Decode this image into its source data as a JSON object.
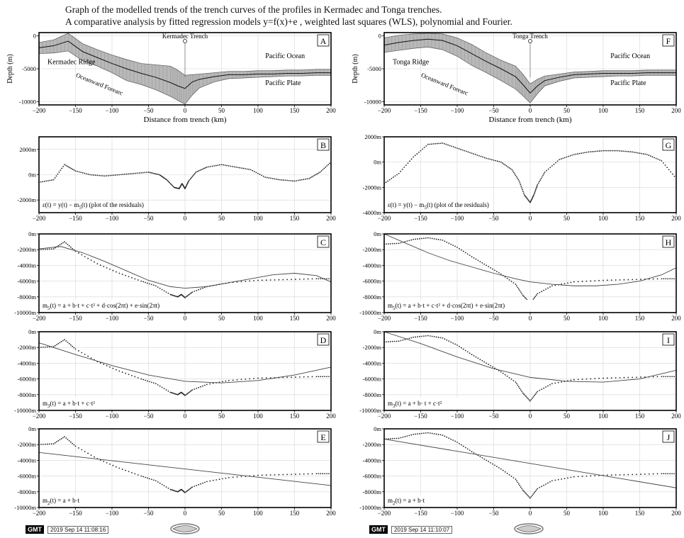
{
  "header": {
    "title_line1": "Graph of the modelled trends of the trench curves of the profiles in Kermadec and Tonga trenches.",
    "title_line2": "A comparative analysis by fitted regression models y=f(x)+e , weighted last squares (WLS), polynomial and Fourier."
  },
  "footer": {
    "left_badge": "GMT",
    "left_stamp": "2019 Sep 14 11:08:16",
    "right_badge": "GMT",
    "right_stamp": "2019 Sep 14 11:10:07"
  },
  "colors": {
    "data": "#222222",
    "fit": "#444444",
    "band": "#b8b8b8",
    "grid": "#d6d6d6",
    "axis": "#000000"
  },
  "chart_data": [
    {
      "id": "A",
      "label": "A",
      "type": "area",
      "trench": "Kermadec",
      "xlabel": "Distance from trench (km)",
      "ylabel": "Depth (m)",
      "xlim": [
        -200,
        200
      ],
      "ylim": [
        -10500,
        500
      ],
      "xticks": [
        -200,
        -150,
        -100,
        -50,
        0,
        50,
        100,
        150,
        200
      ],
      "yticks": [
        0,
        -5000,
        -10000
      ],
      "ytick_labels": [
        "0",
        "-5000",
        "-10000"
      ],
      "x": [
        -200,
        -180,
        -160,
        -140,
        -120,
        -100,
        -80,
        -60,
        -40,
        -20,
        -10,
        0,
        10,
        20,
        40,
        60,
        80,
        100,
        120,
        140,
        160,
        180,
        200
      ],
      "mean": [
        -1800,
        -1500,
        -800,
        -2400,
        -3300,
        -4200,
        -5000,
        -5700,
        -6300,
        -7100,
        -7600,
        -8000,
        -7000,
        -6600,
        -6200,
        -5900,
        -5900,
        -5800,
        -5800,
        -5700,
        -5700,
        -5600,
        -5600
      ],
      "upper": [
        -1000,
        -600,
        400,
        -1200,
        -2100,
        -2900,
        -3600,
        -4200,
        -4400,
        -4600,
        -5200,
        -6000,
        -5900,
        -5800,
        -5600,
        -5400,
        -5400,
        -5300,
        -5300,
        -5200,
        -5200,
        -5100,
        -5100
      ],
      "lower": [
        -2700,
        -2600,
        -2300,
        -3800,
        -4600,
        -5600,
        -6800,
        -7400,
        -8200,
        -9200,
        -9800,
        -10400,
        -9000,
        -7900,
        -7000,
        -6500,
        -6400,
        -6300,
        -6200,
        -6100,
        -6100,
        -6000,
        -6000
      ],
      "annotations": [
        "Kermadec Trench",
        "Kermadec Ridge",
        "Oceanward Forearc",
        "Pacific Ocean",
        "Pacific Plate"
      ]
    },
    {
      "id": "B",
      "label": "B",
      "type": "scatter",
      "trench": "Kermadec",
      "ylim": [
        -3000,
        3000
      ],
      "yticks": [
        2000,
        0,
        -2000
      ],
      "ytick_labels": [
        "2000m",
        "0m",
        "-2000m"
      ],
      "xticks": [
        -200,
        -150,
        -100,
        -50,
        0,
        50,
        100,
        150,
        200
      ],
      "formula": "ε(t) = y(t) − m5(t) (plot of the residuals)",
      "x": [
        -200,
        -180,
        -165,
        -150,
        -130,
        -110,
        -90,
        -70,
        -50,
        -35,
        -25,
        -15,
        -8,
        -4,
        0,
        5,
        15,
        30,
        50,
        70,
        90,
        110,
        130,
        150,
        170,
        185,
        200
      ],
      "y": [
        -600,
        -400,
        800,
        300,
        0,
        -100,
        0,
        100,
        200,
        0,
        -400,
        -1000,
        -1100,
        -700,
        -1100,
        -500,
        200,
        600,
        800,
        600,
        400,
        -200,
        -400,
        -500,
        -300,
        200,
        1000
      ]
    },
    {
      "id": "C",
      "label": "C",
      "type": "line",
      "trench": "Kermadec",
      "ylim": [
        -10000,
        0
      ],
      "yticks": [
        0,
        -2000,
        -4000,
        -6000,
        -8000,
        -10000
      ],
      "ytick_labels": [
        "0m",
        "-2000m",
        "-4000m",
        "-6000m",
        "-8000m",
        "-10000m"
      ],
      "xticks": [
        -200,
        -150,
        -100,
        -50,
        0,
        50,
        100,
        150,
        200
      ],
      "formula": "m5(t) = a + b·t + c·t² + d·cos(2πt) + e·sin(2πt)",
      "data_x": [
        -200,
        -180,
        -165,
        -150,
        -120,
        -90,
        -60,
        -40,
        -20,
        -10,
        -5,
        0,
        10,
        30,
        60,
        100,
        140,
        180,
        200
      ],
      "data_y": [
        -2000,
        -1900,
        -1000,
        -2200,
        -3800,
        -5000,
        -6000,
        -6600,
        -7700,
        -8000,
        -7700,
        -8100,
        -7400,
        -6700,
        -6200,
        -5900,
        -5800,
        -5700,
        -5700
      ],
      "fit_x": [
        -200,
        -170,
        -140,
        -110,
        -80,
        -50,
        -20,
        0,
        30,
        60,
        90,
        120,
        150,
        180,
        200
      ],
      "fit_y": [
        -1900,
        -1600,
        -2400,
        -3500,
        -4700,
        -5900,
        -6700,
        -6900,
        -6700,
        -6200,
        -5700,
        -5200,
        -5000,
        -5300,
        -6100
      ]
    },
    {
      "id": "D",
      "label": "D",
      "type": "line",
      "trench": "Kermadec",
      "ylim": [
        -10000,
        0
      ],
      "yticks": [
        0,
        -2000,
        -4000,
        -6000,
        -8000,
        -10000
      ],
      "ytick_labels": [
        "0m",
        "-2000m",
        "-4000m",
        "-6000m",
        "-8000m",
        "-10000m"
      ],
      "xticks": [
        -200,
        -150,
        -100,
        -50,
        0,
        50,
        100,
        150,
        200
      ],
      "formula": "m3(t) = a + b·t + c·t²",
      "data_x": [
        -200,
        -180,
        -165,
        -150,
        -120,
        -90,
        -60,
        -40,
        -20,
        -10,
        -5,
        0,
        10,
        30,
        60,
        100,
        140,
        180,
        200
      ],
      "data_y": [
        -2000,
        -1900,
        -1000,
        -2200,
        -3800,
        -5000,
        -6000,
        -6600,
        -7700,
        -8000,
        -7700,
        -8100,
        -7400,
        -6700,
        -6200,
        -5900,
        -5800,
        -5700,
        -5700
      ],
      "fit_x": [
        -200,
        -150,
        -100,
        -50,
        0,
        50,
        100,
        150,
        200
      ],
      "fit_y": [
        -1400,
        -2900,
        -4300,
        -5500,
        -6300,
        -6500,
        -6200,
        -5500,
        -4500
      ]
    },
    {
      "id": "E",
      "label": "E",
      "type": "line",
      "trench": "Kermadec",
      "ylim": [
        -10000,
        0
      ],
      "yticks": [
        0,
        -2000,
        -4000,
        -6000,
        -8000,
        -10000
      ],
      "ytick_labels": [
        "0m",
        "-2000m",
        "-4000m",
        "-6000m",
        "-8000m",
        "-10000m"
      ],
      "xticks": [
        -200,
        -150,
        -100,
        -50,
        0,
        50,
        100,
        150,
        200
      ],
      "formula": "m2(t) = a + b·t",
      "data_x": [
        -200,
        -180,
        -165,
        -150,
        -120,
        -90,
        -60,
        -40,
        -20,
        -10,
        -5,
        0,
        10,
        30,
        60,
        100,
        140,
        180,
        200
      ],
      "data_y": [
        -2000,
        -1900,
        -1000,
        -2200,
        -3800,
        -5000,
        -6000,
        -6600,
        -7700,
        -8000,
        -7700,
        -8100,
        -7400,
        -6700,
        -6200,
        -5900,
        -5800,
        -5700,
        -5700
      ],
      "fit_x": [
        -200,
        200
      ],
      "fit_y": [
        -3000,
        -7200
      ]
    },
    {
      "id": "F",
      "label": "F",
      "type": "area",
      "trench": "Tonga",
      "xlabel": "Distance from trench (km)",
      "ylabel": "Depth (m)",
      "xlim": [
        -200,
        200
      ],
      "ylim": [
        -10500,
        500
      ],
      "xticks": [
        -200,
        -150,
        -100,
        -50,
        0,
        50,
        100,
        150,
        200
      ],
      "yticks": [
        0,
        -5000,
        -10000
      ],
      "ytick_labels": [
        "0",
        "-5000",
        "-10000"
      ],
      "x": [
        -200,
        -180,
        -160,
        -140,
        -120,
        -100,
        -80,
        -60,
        -40,
        -20,
        -10,
        0,
        10,
        20,
        40,
        60,
        80,
        100,
        120,
        140,
        160,
        180,
        200
      ],
      "mean": [
        -1400,
        -1000,
        -700,
        -500,
        -700,
        -1500,
        -2700,
        -3900,
        -5000,
        -6200,
        -7400,
        -8700,
        -7600,
        -6800,
        -6300,
        -5900,
        -5800,
        -5700,
        -5700,
        -5700,
        -5600,
        -5600,
        -5600
      ],
      "upper": [
        -300,
        100,
        300,
        400,
        300,
        -300,
        -1300,
        -2600,
        -3700,
        -4600,
        -5800,
        -7300,
        -6600,
        -6100,
        -5800,
        -5500,
        -5400,
        -5300,
        -5300,
        -5300,
        -5200,
        -5200,
        -5200
      ],
      "lower": [
        -2500,
        -2200,
        -1900,
        -1700,
        -2100,
        -3100,
        -4500,
        -5600,
        -6800,
        -8100,
        -9100,
        -10200,
        -8800,
        -7600,
        -6900,
        -6400,
        -6300,
        -6200,
        -6100,
        -6100,
        -6000,
        -6000,
        -6000
      ],
      "annotations": [
        "Tonga Trench",
        "Tonga Ridge",
        "Oceanward Forearc",
        "Pacific Ocean",
        "Pacific Plate"
      ]
    },
    {
      "id": "G",
      "label": "G",
      "type": "scatter",
      "trench": "Tonga",
      "ylim": [
        -4000,
        2000
      ],
      "yticks": [
        2000,
        0,
        -2000,
        -4000
      ],
      "ytick_labels": [
        "2000m",
        "0m",
        "-2000m",
        "-4000m"
      ],
      "xticks": [
        -200,
        -150,
        -100,
        -50,
        0,
        50,
        100,
        150,
        200
      ],
      "formula": "ε(t) = y(t) − m5(t) (plot of the residuals)",
      "x": [
        -200,
        -180,
        -160,
        -140,
        -120,
        -100,
        -80,
        -60,
        -40,
        -25,
        -15,
        -8,
        0,
        5,
        10,
        20,
        40,
        60,
        80,
        100,
        120,
        140,
        160,
        180,
        200
      ],
      "y": [
        -1700,
        -900,
        400,
        1400,
        1500,
        1100,
        700,
        300,
        0,
        -600,
        -1500,
        -2600,
        -3200,
        -2600,
        -1800,
        -800,
        200,
        600,
        800,
        900,
        900,
        800,
        600,
        100,
        -1300
      ]
    },
    {
      "id": "H",
      "label": "H",
      "type": "line",
      "trench": "Tonga",
      "ylim": [
        -10000,
        0
      ],
      "yticks": [
        0,
        -2000,
        -4000,
        -6000,
        -8000,
        -10000
      ],
      "ytick_labels": [
        "0m",
        "-2000m",
        "-4000m",
        "-6000m",
        "-8000m",
        "-10000m"
      ],
      "xticks": [
        -200,
        -150,
        -100,
        -50,
        0,
        50,
        100,
        150,
        200
      ],
      "formula": "m5(t) = a + b·t + c·t² + d·cos(2πt) + e·sin(2πt)",
      "data_x": [
        -200,
        -180,
        -160,
        -140,
        -120,
        -100,
        -80,
        -60,
        -40,
        -20,
        -10,
        0,
        10,
        30,
        60,
        100,
        140,
        180,
        200
      ],
      "data_y": [
        -1300,
        -1200,
        -700,
        -500,
        -800,
        -1700,
        -2900,
        -4000,
        -5100,
        -6400,
        -7800,
        -8800,
        -7600,
        -6600,
        -6100,
        -5900,
        -5800,
        -5700,
        -5700
      ],
      "fit_x": [
        -200,
        -170,
        -140,
        -110,
        -80,
        -50,
        -20,
        0,
        30,
        60,
        90,
        120,
        150,
        180,
        200
      ],
      "fit_y": [
        0,
        -1200,
        -2400,
        -3400,
        -4200,
        -5000,
        -5700,
        -6100,
        -6400,
        -6600,
        -6600,
        -6400,
        -6000,
        -5200,
        -4300
      ]
    },
    {
      "id": "I",
      "label": "I",
      "type": "line",
      "trench": "Tonga",
      "ylim": [
        -10000,
        0
      ],
      "yticks": [
        0,
        -2000,
        -4000,
        -6000,
        -8000,
        -10000
      ],
      "ytick_labels": [
        "0m",
        "-2000m",
        "-4000m",
        "-6000m",
        "-8000m",
        "-10000m"
      ],
      "xticks": [
        -200,
        -150,
        -100,
        -50,
        0,
        50,
        100,
        150,
        200
      ],
      "formula": "m3(t) = a + b· t + c·t²",
      "data_x": [
        -200,
        -180,
        -160,
        -140,
        -120,
        -100,
        -80,
        -60,
        -40,
        -20,
        -10,
        0,
        10,
        30,
        60,
        100,
        140,
        180,
        200
      ],
      "data_y": [
        -1300,
        -1200,
        -700,
        -500,
        -800,
        -1700,
        -2900,
        -4000,
        -5100,
        -6400,
        -7800,
        -8800,
        -7600,
        -6600,
        -6100,
        -5900,
        -5800,
        -5700,
        -5700
      ],
      "fit_x": [
        -200,
        -150,
        -100,
        -50,
        0,
        50,
        100,
        150,
        200
      ],
      "fit_y": [
        500,
        -1500,
        -3200,
        -4700,
        -5800,
        -6300,
        -6400,
        -6000,
        -4900
      ]
    },
    {
      "id": "J",
      "label": "J",
      "type": "line",
      "trench": "Tonga",
      "ylim": [
        -10000,
        0
      ],
      "yticks": [
        0,
        -2000,
        -4000,
        -6000,
        -8000,
        -10000
      ],
      "ytick_labels": [
        "0m",
        "-2000m",
        "-4000m",
        "-6000m",
        "-8000m",
        "-10000m"
      ],
      "xticks": [
        -200,
        -150,
        -100,
        -50,
        0,
        50,
        100,
        150,
        200
      ],
      "formula": "m2(t) = a + b·t",
      "data_x": [
        -200,
        -180,
        -160,
        -140,
        -120,
        -100,
        -80,
        -60,
        -40,
        -20,
        -10,
        0,
        10,
        30,
        60,
        100,
        140,
        180,
        200
      ],
      "data_y": [
        -1300,
        -1200,
        -700,
        -500,
        -800,
        -1700,
        -2900,
        -4000,
        -5100,
        -6400,
        -7800,
        -8800,
        -7600,
        -6600,
        -6100,
        -5900,
        -5800,
        -5700,
        -5700
      ],
      "fit_x": [
        -200,
        200
      ],
      "fit_y": [
        -1300,
        -7500
      ]
    }
  ]
}
